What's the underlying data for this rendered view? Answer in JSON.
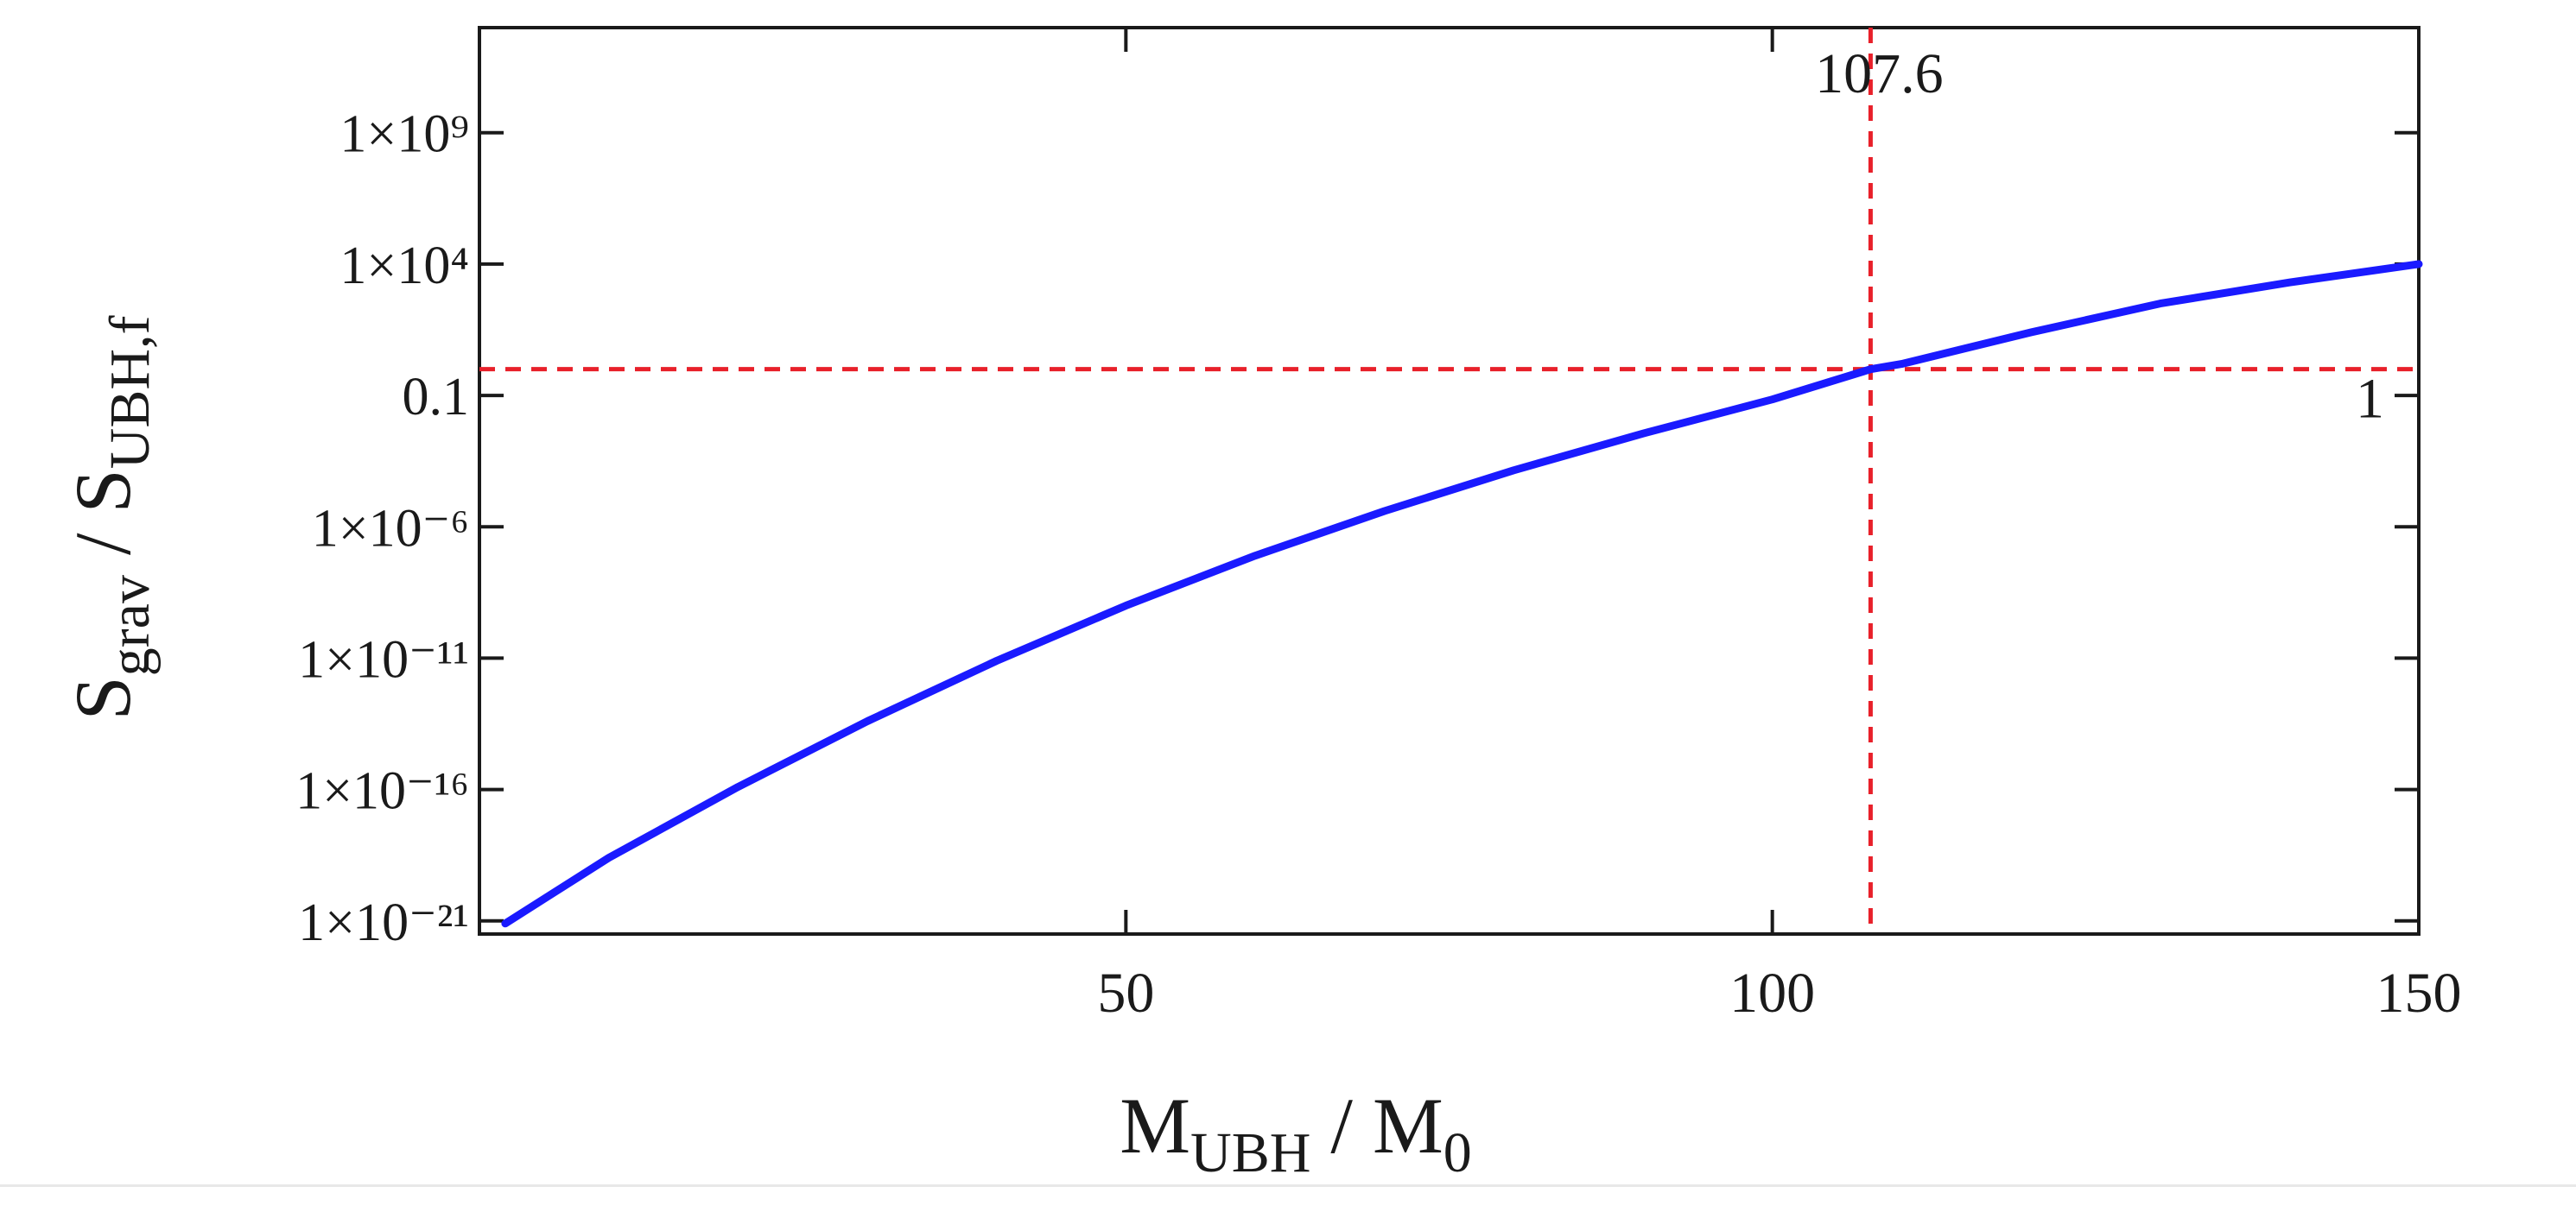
{
  "chart_data": {
    "type": "line",
    "xlabel": {
      "main": "M",
      "main_sub": "UBH",
      "sep": " / M",
      "sep_sub": "0"
    },
    "ylabel": {
      "main": "S",
      "main_sub": "grav",
      "sep": " / S",
      "sep_sub": "UBH,f"
    },
    "x_scale": "linear",
    "y_scale": "log",
    "xlim": [
      0,
      150
    ],
    "ylim_log10": [
      -21.5,
      13
    ],
    "x_ticks": [
      {
        "value": 50,
        "label": "50"
      },
      {
        "value": 100,
        "label": "100"
      },
      {
        "value": 150,
        "label": "150"
      }
    ],
    "y_ticks": [
      {
        "log10": 9,
        "label": "1×10⁹"
      },
      {
        "log10": 4,
        "label": "1×10⁴"
      },
      {
        "log10": -1,
        "label": "0.1"
      },
      {
        "log10": -6,
        "label": "1×10⁻⁶"
      },
      {
        "log10": -11,
        "label": "1×10⁻¹¹"
      },
      {
        "log10": -16,
        "label": "1×10⁻¹⁶"
      },
      {
        "log10": -21,
        "label": "1×10⁻²¹"
      }
    ],
    "grid": false,
    "series": [
      {
        "color": "#1a1aff",
        "x": [
          2,
          10,
          20,
          30,
          40,
          50,
          60,
          70,
          80,
          90,
          100,
          107.6,
          110,
          120,
          130,
          140,
          150
        ],
        "log10_y": [
          -21.1,
          -18.6,
          -15.9,
          -13.4,
          -11.1,
          -9.0,
          -7.1,
          -5.4,
          -3.85,
          -2.45,
          -1.15,
          0,
          0.2,
          1.4,
          2.5,
          3.3,
          4.0
        ]
      }
    ],
    "reference_lines": [
      {
        "orientation": "vertical",
        "x": 107.6,
        "label": "107.6",
        "color": "#e8202a"
      },
      {
        "orientation": "horizontal",
        "log10_y": 0,
        "label": "1",
        "color": "#e8202a"
      }
    ]
  }
}
